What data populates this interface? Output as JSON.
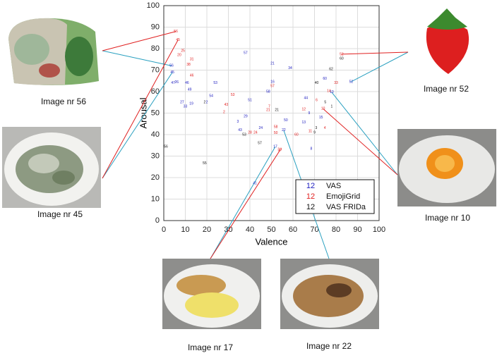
{
  "chart_data": {
    "type": "scatter",
    "xlabel": "Valence",
    "ylabel": "Arousal",
    "xlim": [
      0,
      100
    ],
    "ylim": [
      0,
      100
    ],
    "xticks": [
      0,
      10,
      20,
      30,
      40,
      50,
      60,
      70,
      80,
      90,
      100
    ],
    "yticks": [
      0,
      10,
      20,
      30,
      40,
      50,
      60,
      70,
      80,
      90,
      100
    ],
    "grid": true,
    "legend": "lower right",
    "legend_marker": "12",
    "series": [
      {
        "name": "VAS",
        "color": "#2020c0",
        "labels": [
          "56",
          "57",
          "21",
          "34",
          "53",
          "54",
          "2",
          "51",
          "16",
          "58",
          "29",
          "3",
          "24",
          "43",
          "44",
          "9",
          "13",
          "15",
          "22",
          "50",
          "52",
          "60",
          "10",
          "8",
          "17",
          "41",
          "47",
          "19",
          "33",
          "46",
          "49",
          "27",
          "45",
          "26"
        ],
        "x": [
          3.6,
          38,
          50.5,
          58.7,
          24,
          22,
          20,
          40,
          50.5,
          48.5,
          38,
          34.4,
          45,
          35.4,
          66,
          67.5,
          65,
          73,
          55.7,
          56.7,
          87,
          74.8,
          78,
          68.5,
          51.8,
          42.3,
          4.3,
          12.8,
          10,
          10.8,
          12,
          8.5,
          4,
          6
        ],
        "values": [
          72,
          78,
          73,
          71,
          64,
          58,
          55,
          56,
          64.6,
          60,
          48.5,
          46,
          43,
          42,
          57,
          50,
          45.6,
          48,
          42,
          46.6,
          64.6,
          66,
          59.7,
          33.4,
          34.4,
          17.4,
          64,
          54.4,
          53,
          64,
          61,
          55,
          69,
          64.3
        ]
      },
      {
        "name": "EmojiGrid",
        "color": "#e02020",
        "labels": [
          "56",
          "45",
          "25",
          "20",
          "31",
          "38",
          "46",
          "53",
          "43",
          "2",
          "57",
          "21",
          "7",
          "28",
          "24",
          "58",
          "52",
          "50",
          "34",
          "60",
          "12",
          "11",
          "10",
          "4",
          "14",
          "17",
          "33",
          "6"
        ],
        "x": [
          5.6,
          6.6,
          8.9,
          7.2,
          13,
          11.5,
          13,
          32,
          29,
          28,
          50.5,
          48.5,
          49,
          40,
          42.6,
          52,
          82.6,
          52,
          53.8,
          61.6,
          65,
          68,
          74,
          74.8,
          76.7,
          54,
          80,
          71
        ],
        "values": [
          88,
          84,
          79,
          77,
          75,
          72.5,
          67.5,
          58.4,
          53.8,
          50.5,
          62.6,
          51.5,
          53,
          41,
          41,
          43.6,
          77.4,
          40.7,
          33,
          40,
          51.8,
          41.6,
          52,
          43,
          60.3,
          32.8,
          64,
          56
        ]
      },
      {
        "name": "VAS FRIDa",
        "color": "#111111",
        "labels": [
          "56",
          "55",
          "57",
          "53",
          "62",
          "60",
          "40",
          "5",
          "1",
          "9",
          "3",
          "21",
          "2"
        ],
        "x": [
          1,
          19,
          44.6,
          37.4,
          77.7,
          82.6,
          71,
          75,
          78,
          70,
          70.8,
          52.5,
          19
        ],
        "values": [
          34.4,
          26.6,
          36,
          40,
          70.5,
          75.4,
          64,
          55,
          53,
          41,
          43,
          51.5,
          55
        ]
      }
    ]
  },
  "images": [
    {
      "caption": "Image nr 56"
    },
    {
      "caption": "Image nr 45"
    },
    {
      "caption": "Image nr 52"
    },
    {
      "caption": "Image nr 10"
    },
    {
      "caption": "Image nr 17"
    },
    {
      "caption": "Image nr 22"
    }
  ]
}
